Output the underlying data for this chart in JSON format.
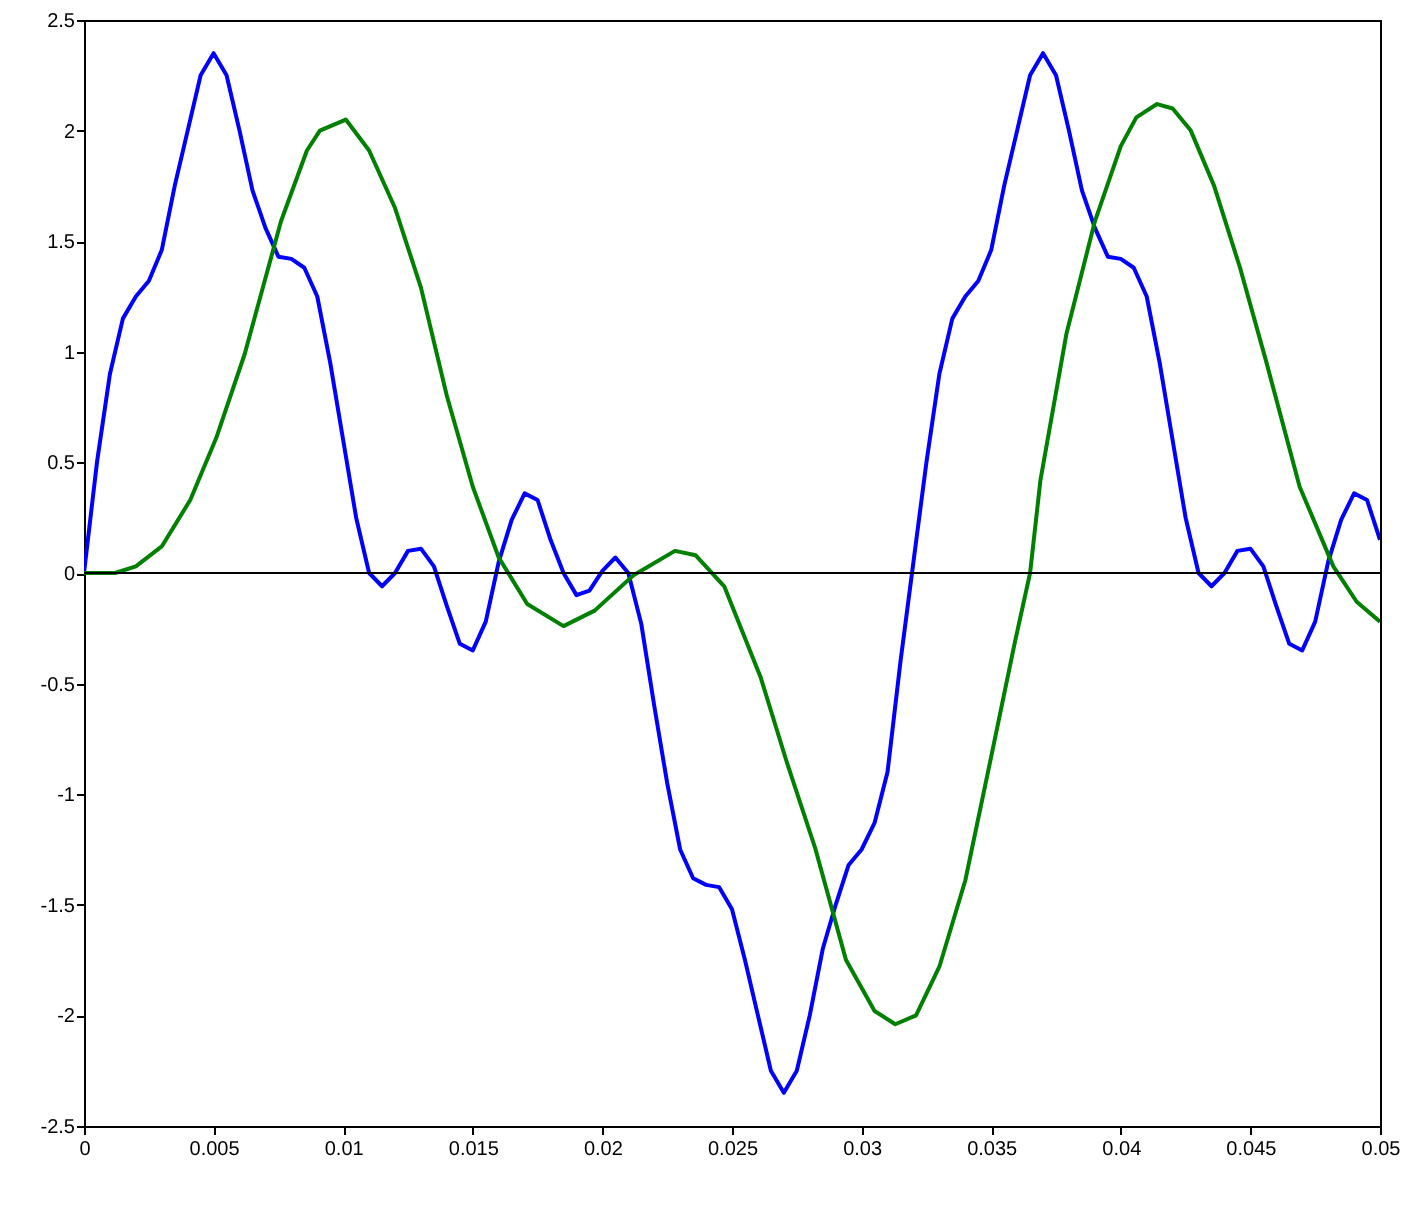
{
  "chart_data": {
    "type": "line",
    "xlim": [
      0,
      0.05
    ],
    "ylim": [
      -2.5,
      2.5
    ],
    "xticks": [
      0,
      0.005,
      0.01,
      0.015,
      0.02,
      0.025,
      0.03,
      0.035,
      0.04,
      0.045,
      0.05
    ],
    "yticks": [
      -2.5,
      -2,
      -1.5,
      -1,
      -0.5,
      0,
      0.5,
      1,
      1.5,
      2,
      2.5
    ],
    "marker": "none",
    "line_style": "solid",
    "ref_lines": [
      {
        "axis": "y",
        "value": 0,
        "color": "#000000"
      }
    ],
    "series": [
      {
        "color": "#0000ff",
        "x": [
          0,
          0.0005,
          0.001,
          0.0015,
          0.002,
          0.0025,
          0.003,
          0.0035,
          0.004,
          0.0045,
          0.005,
          0.0055,
          0.006,
          0.0065,
          0.007,
          0.0075,
          0.008,
          0.0085,
          0.009,
          0.0095,
          0.01,
          0.0105,
          0.011,
          0.0115,
          0.012,
          0.0125,
          0.013,
          0.0135,
          0.014,
          0.0145,
          0.015,
          0.0155,
          0.016,
          0.0165,
          0.017,
          0.0175,
          0.018,
          0.0185,
          0.019,
          0.0195,
          0.02,
          0.0205,
          0.021,
          0.0215,
          0.022,
          0.0225,
          0.023,
          0.0235,
          0.024,
          0.0245,
          0.025,
          0.0255,
          0.026,
          0.0265,
          0.027,
          0.0275,
          0.028,
          0.0285,
          0.029,
          0.0295,
          0.03,
          0.0305,
          0.031,
          0.0315,
          0.032,
          0.0325,
          0.033,
          0.0335,
          0.034,
          0.0345,
          0.035,
          0.0355,
          0.036,
          0.0365,
          0.037,
          0.0375,
          0.038,
          0.0385,
          0.039,
          0.0395,
          0.04,
          0.0405,
          0.041,
          0.0415,
          0.042,
          0.0425,
          0.043,
          0.0435,
          0.044,
          0.0445,
          0.045,
          0.0455,
          0.046,
          0.0465,
          0.047,
          0.0475,
          0.048,
          0.0485,
          0.049,
          0.0495,
          0.05
        ],
        "values": [
          0,
          0.5,
          0.9,
          1.15,
          1.25,
          1.32,
          1.46,
          1.75,
          2.0,
          2.25,
          2.35,
          2.25,
          2.0,
          1.73,
          1.56,
          1.43,
          1.42,
          1.38,
          1.25,
          0.95,
          0.6,
          0.25,
          0,
          -0.06,
          0,
          0.1,
          0.11,
          0.03,
          -0.15,
          -0.32,
          -0.35,
          -0.22,
          0.05,
          0.24,
          0.36,
          0.33,
          0.15,
          0,
          -0.1,
          -0.08,
          0.01,
          0.07,
          0,
          -0.23,
          -0.6,
          -0.95,
          -1.25,
          -1.38,
          -1.41,
          -1.42,
          -1.52,
          -1.75,
          -2.0,
          -2.25,
          -2.35,
          -2.25,
          -2.0,
          -1.7,
          -1.5,
          -1.32,
          -1.25,
          -1.13,
          -0.9,
          -0.4,
          0.05,
          0.5,
          0.9,
          1.15,
          1.25,
          1.32,
          1.46,
          1.75,
          2.0,
          2.25,
          2.35,
          2.25,
          2.0,
          1.73,
          1.56,
          1.43,
          1.42,
          1.38,
          1.25,
          0.95,
          0.6,
          0.25,
          0,
          -0.06,
          0,
          0.1,
          0.11,
          0.03,
          -0.15,
          -0.32,
          -0.35,
          -0.22,
          0.05,
          0.24,
          0.36,
          0.33,
          0.15
        ]
      },
      {
        "color": "#008000",
        "x": [
          0,
          0.0012,
          0.002,
          0.003,
          0.0041,
          0.0051,
          0.0062,
          0.0076,
          0.0086,
          0.0091,
          0.0101,
          0.011,
          0.012,
          0.013,
          0.014,
          0.015,
          0.016,
          0.0171,
          0.0185,
          0.0197,
          0.0212,
          0.0228,
          0.0236,
          0.0247,
          0.0261,
          0.0271,
          0.0282,
          0.0294,
          0.0305,
          0.0313,
          0.0321,
          0.033,
          0.034,
          0.035,
          0.0359,
          0.0365,
          0.0369,
          0.0379,
          0.039,
          0.04,
          0.0406,
          0.0414,
          0.042,
          0.0427,
          0.0436,
          0.0446,
          0.0456,
          0.0469,
          0.0482,
          0.0491,
          0.05
        ],
        "values": [
          0,
          0,
          0.03,
          0.12,
          0.33,
          0.61,
          0.99,
          1.59,
          1.91,
          2.0,
          2.05,
          1.91,
          1.65,
          1.29,
          0.8,
          0.39,
          0.07,
          -0.14,
          -0.24,
          -0.17,
          -0.01,
          0.1,
          0.08,
          -0.06,
          -0.47,
          -0.85,
          -1.24,
          -1.75,
          -1.98,
          -2.04,
          -2.0,
          -1.78,
          -1.39,
          -0.83,
          -0.32,
          0,
          0.42,
          1.08,
          1.59,
          1.93,
          2.06,
          2.12,
          2.1,
          2.0,
          1.75,
          1.38,
          0.96,
          0.39,
          0.03,
          -0.13,
          -0.22
        ]
      }
    ]
  }
}
